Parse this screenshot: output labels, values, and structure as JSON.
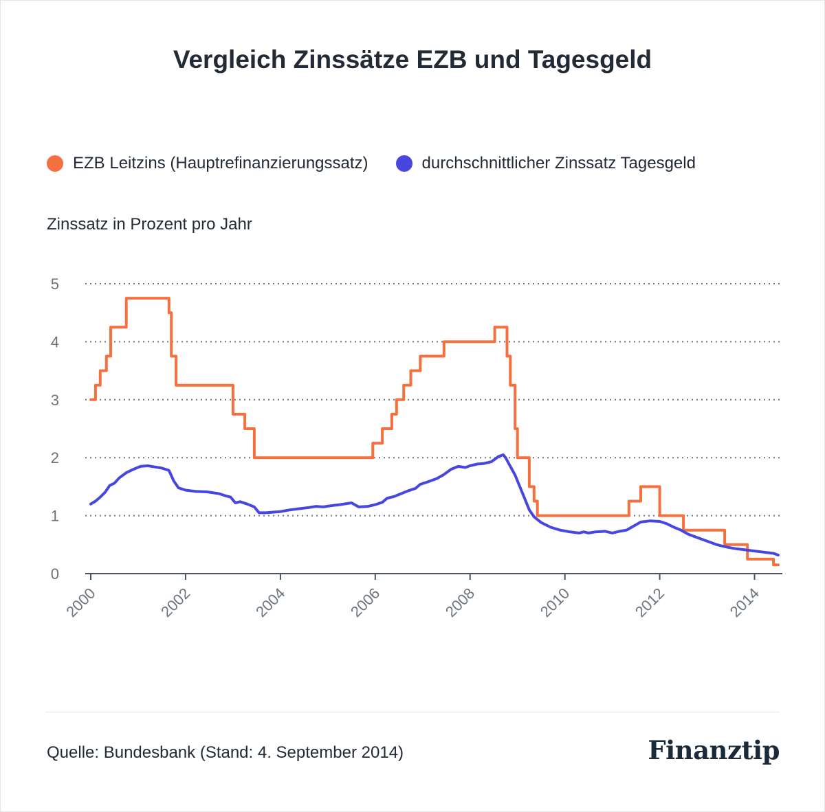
{
  "title": "Vergleich Zinssätze EZB und Tagesgeld",
  "legend": [
    {
      "label": "EZB Leitzins (Hauptrefinanzierungssatz)",
      "color": "#f4713f"
    },
    {
      "label": "durchschnittlicher Zinssatz Tagesgeld",
      "color": "#4747e0"
    }
  ],
  "unit_label": "Zinssatz in Prozent pro Jahr",
  "source": "Quelle: Bundesbank (Stand: 4. September 2014)",
  "brand": "Finanztip",
  "chart_data": {
    "type": "line",
    "ylabel": "Zinssatz in Prozent pro Jahr",
    "xlim": [
      2000,
      2014.5
    ],
    "ylim": [
      0,
      5
    ],
    "x_ticks": [
      "2000",
      "2002",
      "2004",
      "2006",
      "2008",
      "2010",
      "2012",
      "2014"
    ],
    "y_ticks": [
      "0",
      "1",
      "2",
      "3",
      "4",
      "5"
    ],
    "grid": "horizontal dotted",
    "legend_position": "top",
    "series": [
      {
        "name": "EZB Leitzins (Hauptrefinanzierungssatz)",
        "color": "#f4713f",
        "step": true,
        "points": [
          [
            2000.0,
            3.0
          ],
          [
            2000.1,
            3.25
          ],
          [
            2000.2,
            3.5
          ],
          [
            2000.33,
            3.75
          ],
          [
            2000.42,
            4.25
          ],
          [
            2000.65,
            4.25
          ],
          [
            2000.75,
            4.75
          ],
          [
            2001.35,
            4.75
          ],
          [
            2001.65,
            4.5
          ],
          [
            2001.7,
            3.75
          ],
          [
            2001.8,
            3.25
          ],
          [
            2002.85,
            3.25
          ],
          [
            2003.0,
            2.75
          ],
          [
            2003.25,
            2.5
          ],
          [
            2003.45,
            2.0
          ],
          [
            2005.85,
            2.0
          ],
          [
            2005.95,
            2.25
          ],
          [
            2006.15,
            2.5
          ],
          [
            2006.35,
            2.75
          ],
          [
            2006.45,
            3.0
          ],
          [
            2006.6,
            3.25
          ],
          [
            2006.75,
            3.5
          ],
          [
            2006.95,
            3.75
          ],
          [
            2007.45,
            4.0
          ],
          [
            2008.45,
            4.0
          ],
          [
            2008.52,
            4.25
          ],
          [
            2008.7,
            4.25
          ],
          [
            2008.78,
            3.75
          ],
          [
            2008.85,
            3.25
          ],
          [
            2008.95,
            2.5
          ],
          [
            2009.0,
            2.0
          ],
          [
            2009.13,
            2.0
          ],
          [
            2009.25,
            1.5
          ],
          [
            2009.35,
            1.25
          ],
          [
            2009.42,
            1.0
          ],
          [
            2011.25,
            1.0
          ],
          [
            2011.35,
            1.25
          ],
          [
            2011.55,
            1.25
          ],
          [
            2011.6,
            1.5
          ],
          [
            2011.9,
            1.5
          ],
          [
            2012.0,
            1.0
          ],
          [
            2012.4,
            1.0
          ],
          [
            2012.5,
            0.75
          ],
          [
            2013.3,
            0.75
          ],
          [
            2013.37,
            0.5
          ],
          [
            2013.8,
            0.5
          ],
          [
            2013.85,
            0.25
          ],
          [
            2014.3,
            0.25
          ],
          [
            2014.4,
            0.15
          ],
          [
            2014.5,
            0.15
          ]
        ]
      },
      {
        "name": "durchschnittlicher Zinssatz Tagesgeld",
        "color": "#4747e0",
        "step": false,
        "points": [
          [
            2000.0,
            1.2
          ],
          [
            2000.1,
            1.25
          ],
          [
            2000.2,
            1.32
          ],
          [
            2000.3,
            1.4
          ],
          [
            2000.4,
            1.52
          ],
          [
            2000.5,
            1.56
          ],
          [
            2000.6,
            1.65
          ],
          [
            2000.75,
            1.74
          ],
          [
            2000.9,
            1.8
          ],
          [
            2001.05,
            1.85
          ],
          [
            2001.2,
            1.86
          ],
          [
            2001.35,
            1.84
          ],
          [
            2001.5,
            1.82
          ],
          [
            2001.65,
            1.78
          ],
          [
            2001.75,
            1.6
          ],
          [
            2001.85,
            1.48
          ],
          [
            2002.0,
            1.44
          ],
          [
            2002.2,
            1.42
          ],
          [
            2002.45,
            1.41
          ],
          [
            2002.7,
            1.38
          ],
          [
            2002.85,
            1.34
          ],
          [
            2002.95,
            1.32
          ],
          [
            2003.05,
            1.22
          ],
          [
            2003.15,
            1.24
          ],
          [
            2003.3,
            1.2
          ],
          [
            2003.45,
            1.15
          ],
          [
            2003.55,
            1.05
          ],
          [
            2003.7,
            1.05
          ],
          [
            2003.85,
            1.06
          ],
          [
            2004.0,
            1.07
          ],
          [
            2004.2,
            1.1
          ],
          [
            2004.4,
            1.12
          ],
          [
            2004.6,
            1.14
          ],
          [
            2004.75,
            1.16
          ],
          [
            2004.9,
            1.15
          ],
          [
            2005.05,
            1.17
          ],
          [
            2005.25,
            1.19
          ],
          [
            2005.5,
            1.22
          ],
          [
            2005.65,
            1.15
          ],
          [
            2005.85,
            1.16
          ],
          [
            2006.0,
            1.19
          ],
          [
            2006.15,
            1.23
          ],
          [
            2006.25,
            1.3
          ],
          [
            2006.4,
            1.33
          ],
          [
            2006.55,
            1.38
          ],
          [
            2006.7,
            1.43
          ],
          [
            2006.85,
            1.47
          ],
          [
            2006.95,
            1.54
          ],
          [
            2007.1,
            1.58
          ],
          [
            2007.3,
            1.64
          ],
          [
            2007.45,
            1.71
          ],
          [
            2007.6,
            1.8
          ],
          [
            2007.75,
            1.85
          ],
          [
            2007.9,
            1.83
          ],
          [
            2008.0,
            1.86
          ],
          [
            2008.15,
            1.89
          ],
          [
            2008.3,
            1.9
          ],
          [
            2008.45,
            1.93
          ],
          [
            2008.6,
            2.02
          ],
          [
            2008.7,
            2.05
          ],
          [
            2008.75,
            2.0
          ],
          [
            2008.85,
            1.85
          ],
          [
            2008.95,
            1.7
          ],
          [
            2009.05,
            1.5
          ],
          [
            2009.15,
            1.3
          ],
          [
            2009.25,
            1.1
          ],
          [
            2009.35,
            0.98
          ],
          [
            2009.5,
            0.88
          ],
          [
            2009.7,
            0.8
          ],
          [
            2009.9,
            0.75
          ],
          [
            2010.1,
            0.72
          ],
          [
            2010.3,
            0.7
          ],
          [
            2010.4,
            0.72
          ],
          [
            2010.5,
            0.7
          ],
          [
            2010.65,
            0.72
          ],
          [
            2010.85,
            0.73
          ],
          [
            2011.0,
            0.7
          ],
          [
            2011.15,
            0.73
          ],
          [
            2011.3,
            0.75
          ],
          [
            2011.45,
            0.82
          ],
          [
            2011.6,
            0.89
          ],
          [
            2011.8,
            0.91
          ],
          [
            2012.0,
            0.9
          ],
          [
            2012.15,
            0.86
          ],
          [
            2012.3,
            0.8
          ],
          [
            2012.45,
            0.75
          ],
          [
            2012.6,
            0.68
          ],
          [
            2012.8,
            0.62
          ],
          [
            2013.0,
            0.56
          ],
          [
            2013.2,
            0.5
          ],
          [
            2013.4,
            0.46
          ],
          [
            2013.6,
            0.43
          ],
          [
            2013.8,
            0.41
          ],
          [
            2014.0,
            0.39
          ],
          [
            2014.2,
            0.37
          ],
          [
            2014.4,
            0.35
          ],
          [
            2014.5,
            0.32
          ]
        ]
      }
    ]
  }
}
